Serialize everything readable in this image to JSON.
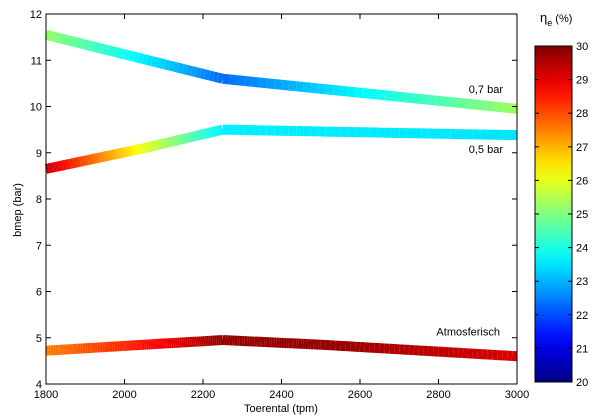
{
  "chart_data": {
    "type": "line",
    "xlabel": "Toerental (tpm)",
    "ylabel": "bmep (bar)",
    "xlim": [
      1800,
      3000
    ],
    "ylim": [
      4,
      12
    ],
    "xticks": [
      1800,
      2000,
      2200,
      2400,
      2600,
      2800,
      3000
    ],
    "yticks": [
      4,
      5,
      6,
      7,
      8,
      9,
      10,
      11,
      12
    ],
    "xtick_labels": [
      "1800",
      "2000",
      "2200",
      "2400",
      "2600",
      "2800",
      "3000"
    ],
    "ytick_labels": [
      "4",
      "5",
      "6",
      "7",
      "8",
      "9",
      "10",
      "11",
      "12"
    ],
    "colorbar": {
      "label_main": "η",
      "label_sub": "e",
      "label_unit": " (%)",
      "range": [
        20,
        30
      ],
      "ticks": [
        20,
        21,
        22,
        23,
        24,
        25,
        26,
        27,
        28,
        29,
        30
      ],
      "tick_labels": [
        "20",
        "21",
        "22",
        "23",
        "24",
        "25",
        "26",
        "27",
        "28",
        "29",
        "30"
      ],
      "colormap": "jet"
    },
    "series": [
      {
        "name": "0,7 bar",
        "x": [
          1800,
          2250,
          3000
        ],
        "y": [
          11.55,
          10.6,
          9.95
        ],
        "efficiency": [
          25.2,
          22.3,
          25.3
        ]
      },
      {
        "name": "0,5 bar",
        "x": [
          1800,
          2050,
          2250,
          3000
        ],
        "y": [
          8.65,
          9.1,
          9.5,
          9.38
        ],
        "efficiency": [
          29.3,
          26.0,
          23.6,
          23.5
        ]
      },
      {
        "name": "Atmosferisch",
        "x": [
          1800,
          2050,
          2250,
          2500,
          3000
        ],
        "y": [
          4.72,
          4.85,
          4.95,
          4.85,
          4.6
        ],
        "efficiency": [
          27.5,
          28.6,
          29.8,
          29.8,
          29.1
        ]
      }
    ]
  }
}
